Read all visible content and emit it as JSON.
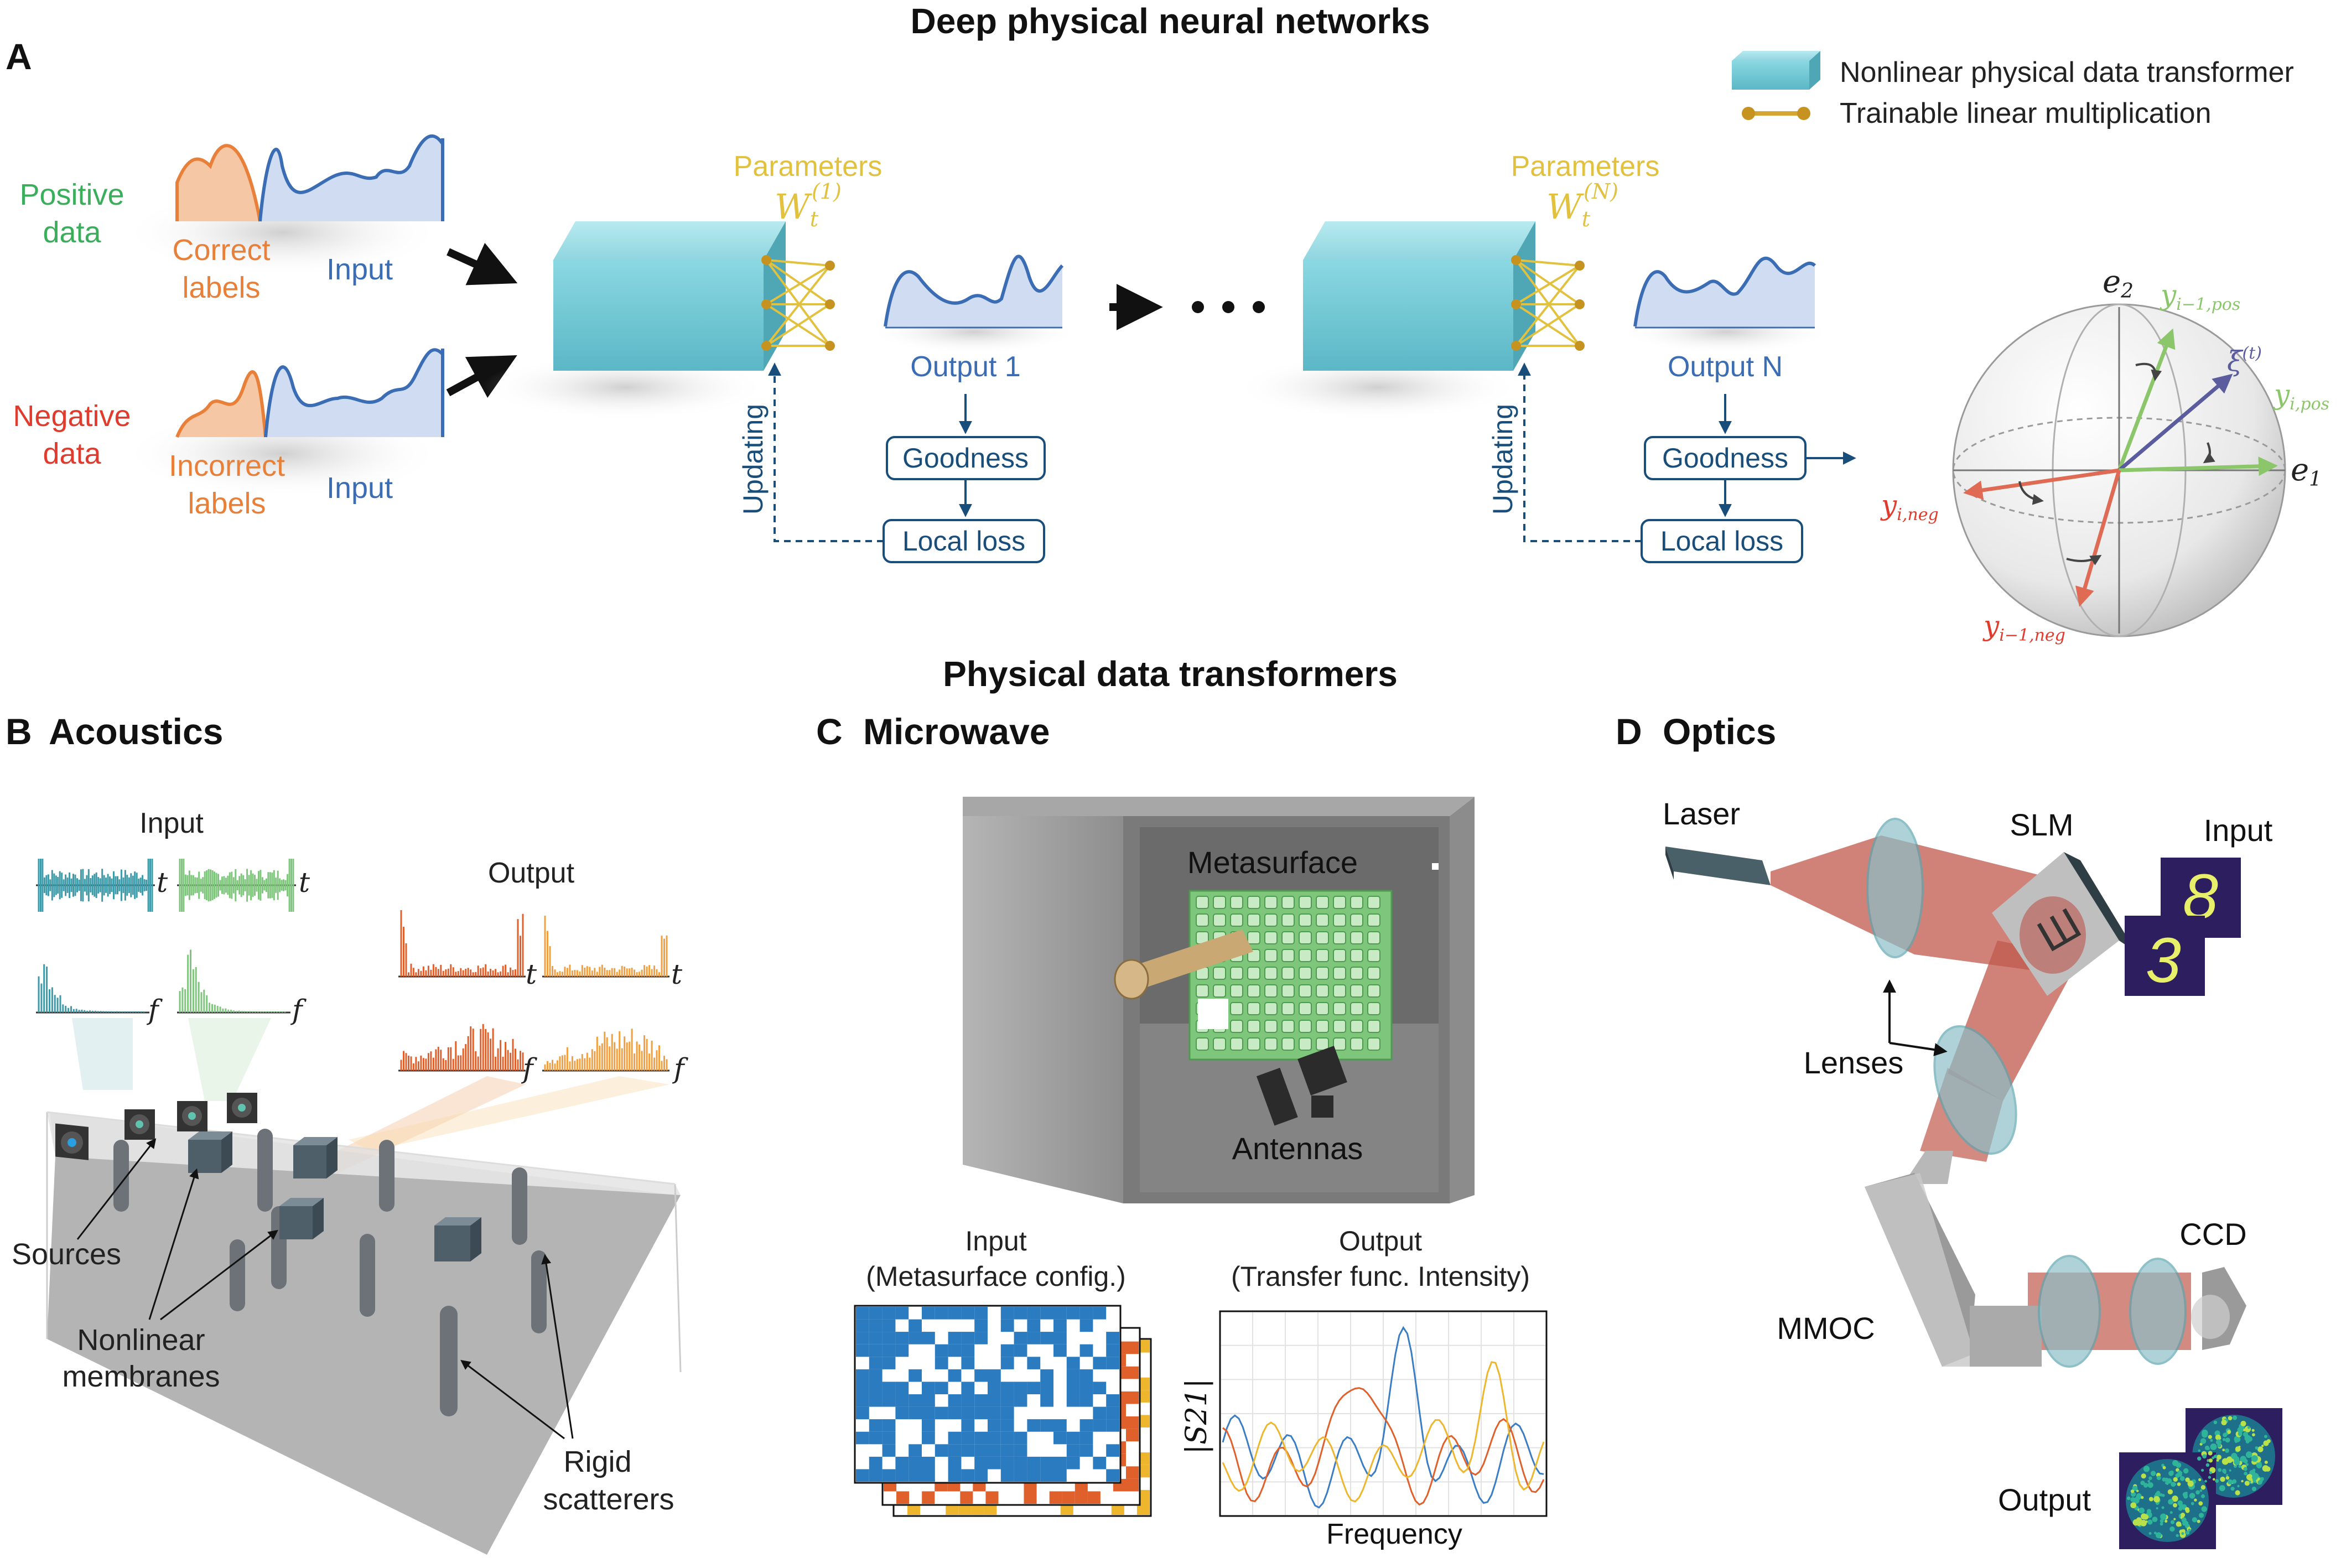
{
  "title": "Deep physical neural networks",
  "subtitle": "Physical data transformers",
  "panel_a": {
    "letter": "A",
    "legend": {
      "transformer": "Nonlinear physical data transformer",
      "linear": "Trainable linear multiplication"
    },
    "positive": [
      "Positive",
      "data"
    ],
    "negative": [
      "Negative",
      "data"
    ],
    "correct_labels": [
      "Correct",
      "labels"
    ],
    "incorrect_labels": [
      "Incorrect",
      "labels"
    ],
    "input": "Input",
    "parameters": "Parameters",
    "w1": "W",
    "w1_sub": "t",
    "w1_sup": "(1)",
    "wn_sup": "(N)",
    "output1": "Output 1",
    "outputn": "Output N",
    "goodness": "Goodness",
    "local_loss": "Local loss",
    "updating": "Updating",
    "sphere": {
      "e2": "e",
      "e2_sub": "2",
      "e1": "e",
      "e1_sub": "1",
      "y_prev_pos": "y",
      "y_prev_pos_sub": "i−1,pos",
      "xi": "ξ",
      "xi_sup": "(t)",
      "y_pos": "y",
      "y_pos_sub": "i,pos",
      "y_neg": "y",
      "y_neg_sub": "i,neg",
      "y_prev_neg": "y",
      "y_prev_neg_sub": "i−1,neg"
    }
  },
  "panel_b": {
    "letter": "B",
    "title": "Acoustics",
    "input": "Input",
    "output": "Output",
    "t": "t",
    "f": "f",
    "sources": "Sources",
    "membranes": [
      "Nonlinear",
      "membranes"
    ],
    "scatterers": [
      "Rigid",
      "scatterers"
    ]
  },
  "panel_c": {
    "letter": "C",
    "title": "Microwave",
    "metasurface": "Metasurface",
    "antennas": "Antennas",
    "input": [
      "Input",
      "(Metasurface config.)"
    ],
    "output": [
      "Output",
      "(Transfer func. Intensity)"
    ],
    "ylabel": "|S21|",
    "xlabel": "Frequency"
  },
  "panel_d": {
    "letter": "D",
    "title": "Optics",
    "laser": "Laser",
    "slm": "SLM",
    "input": "Input",
    "digits": [
      "3",
      "8"
    ],
    "lenses": "Lenses",
    "ccd": "CCD",
    "mmoc": "MMOC",
    "output": "Output"
  },
  "colors": {
    "blue": "#3b6db5",
    "orange": "#e8803a",
    "green": "#3aae5a",
    "red": "#e03b2c",
    "gold": "#e2c13e",
    "navy": "#1a4e7a",
    "teal": "#6ac8d4"
  }
}
